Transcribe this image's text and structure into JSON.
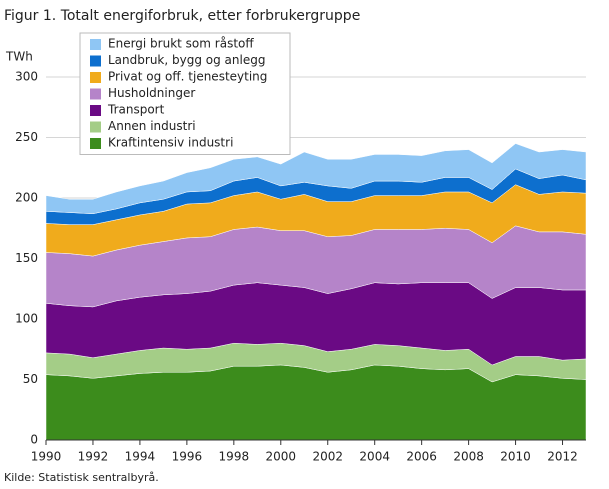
{
  "chart_data": {
    "type": "area",
    "stacked": true,
    "title": "Figur 1. Totalt energiforbruk, etter forbrukergruppe",
    "ylabel": "TWh",
    "source": "Kilde: Statistisk sentralbyrå.",
    "x": [
      1990,
      1991,
      1992,
      1993,
      1994,
      1995,
      1996,
      1997,
      1998,
      1999,
      2000,
      2001,
      2002,
      2003,
      2004,
      2005,
      2006,
      2007,
      2008,
      2009,
      2010,
      2011,
      2012,
      2013
    ],
    "xlim": [
      1990,
      2013
    ],
    "xticks": [
      1990,
      1992,
      1994,
      1996,
      1998,
      2000,
      2002,
      2004,
      2006,
      2008,
      2010,
      2012
    ],
    "ylim": [
      0,
      300
    ],
    "yticks": [
      0,
      50,
      100,
      150,
      200,
      250,
      300
    ],
    "grid": true,
    "legend": "top-left",
    "series": [
      {
        "name": "Kraftintensiv industri",
        "color": "#3c8c1c",
        "values": [
          54,
          53,
          51,
          53,
          55,
          56,
          56,
          57,
          61,
          61,
          62,
          60,
          56,
          58,
          62,
          61,
          59,
          58,
          59,
          48,
          54,
          53,
          51,
          50
        ]
      },
      {
        "name": "Annen industri",
        "color": "#a4cd87",
        "values": [
          18,
          18,
          17,
          18,
          19,
          20,
          19,
          19,
          19,
          18,
          18,
          18,
          17,
          17,
          17,
          17,
          17,
          16,
          16,
          14,
          15,
          16,
          15,
          17
        ]
      },
      {
        "name": "Transport",
        "color": "#6a0a84",
        "values": [
          41,
          40,
          42,
          44,
          44,
          44,
          46,
          47,
          48,
          51,
          48,
          48,
          48,
          50,
          51,
          51,
          54,
          56,
          55,
          55,
          57,
          57,
          58,
          57
        ]
      },
      {
        "name": "Husholdninger",
        "color": "#b584c9",
        "values": [
          42,
          43,
          42,
          42,
          43,
          44,
          46,
          45,
          46,
          46,
          45,
          47,
          47,
          44,
          44,
          45,
          44,
          45,
          44,
          46,
          51,
          46,
          48,
          46
        ]
      },
      {
        "name": "Privat og off. tjenesteyting",
        "color": "#f0ab1c",
        "values": [
          24,
          24,
          26,
          25,
          25,
          25,
          28,
          28,
          28,
          29,
          26,
          30,
          29,
          28,
          28,
          28,
          28,
          30,
          31,
          33,
          34,
          31,
          33,
          34
        ]
      },
      {
        "name": "Landbruk, bygg og anlegg",
        "color": "#0d6fce",
        "values": [
          10,
          10,
          9,
          9,
          10,
          10,
          10,
          10,
          12,
          12,
          11,
          10,
          13,
          11,
          12,
          12,
          11,
          12,
          12,
          11,
          13,
          13,
          14,
          11
        ]
      },
      {
        "name": "Energi brukt som råstoff",
        "color": "#8fc6f4",
        "values": [
          13,
          11,
          12,
          14,
          14,
          15,
          16,
          19,
          18,
          17,
          18,
          25,
          22,
          24,
          22,
          22,
          22,
          22,
          23,
          22,
          21,
          22,
          21,
          23
        ]
      }
    ]
  }
}
